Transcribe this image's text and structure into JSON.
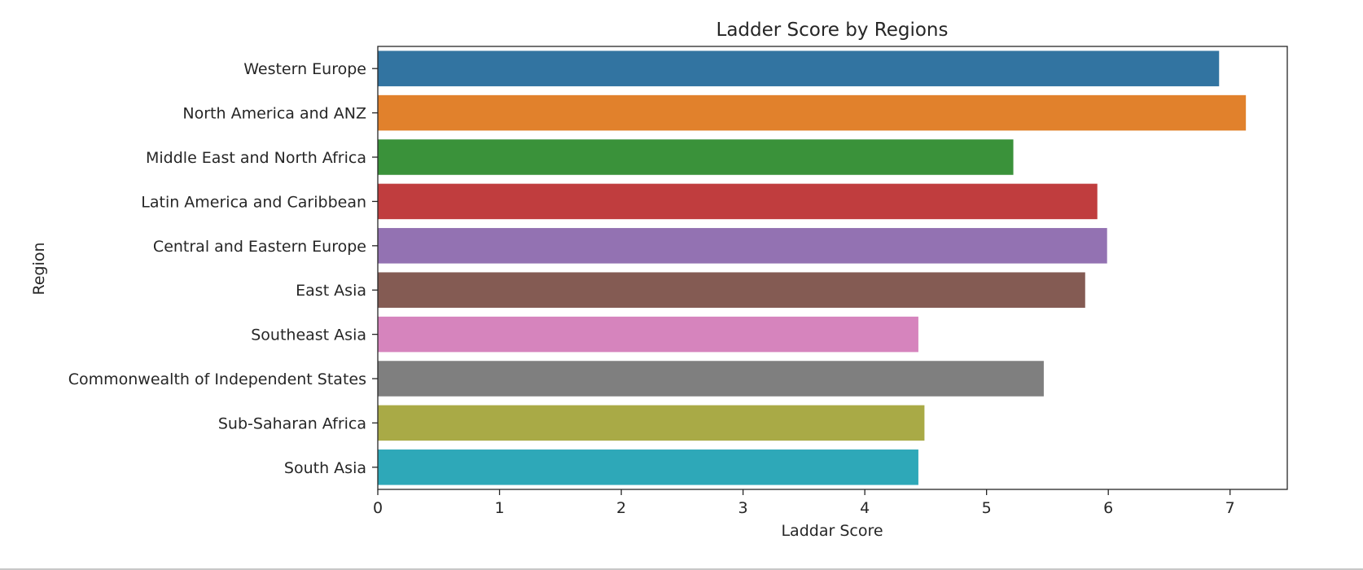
{
  "chart_data": {
    "type": "bar",
    "orientation": "horizontal",
    "title": "Ladder Score by Regions",
    "xlabel": "Laddar Score",
    "ylabel": "Region",
    "xlim": [
      0,
      7.47
    ],
    "xticks": [
      0,
      1,
      2,
      3,
      4,
      5,
      6,
      7
    ],
    "grid": false,
    "legend": "none",
    "categories": [
      "Western Europe",
      "North America and ANZ",
      "Middle East and North Africa",
      "Latin America and Caribbean",
      "Central and Eastern Europe",
      "East Asia",
      "Southeast Asia",
      "Commonwealth of Independent States",
      "Sub-Saharan Africa",
      "South Asia"
    ],
    "values": [
      6.91,
      7.13,
      5.22,
      5.91,
      5.99,
      5.81,
      4.44,
      5.47,
      4.49,
      4.44
    ],
    "colors": [
      "#3274a1",
      "#e1812c",
      "#3a923a",
      "#c03d3e",
      "#9372b2",
      "#845b53",
      "#d684bd",
      "#7f7f7f",
      "#a9aa46",
      "#2ea8b8"
    ]
  }
}
